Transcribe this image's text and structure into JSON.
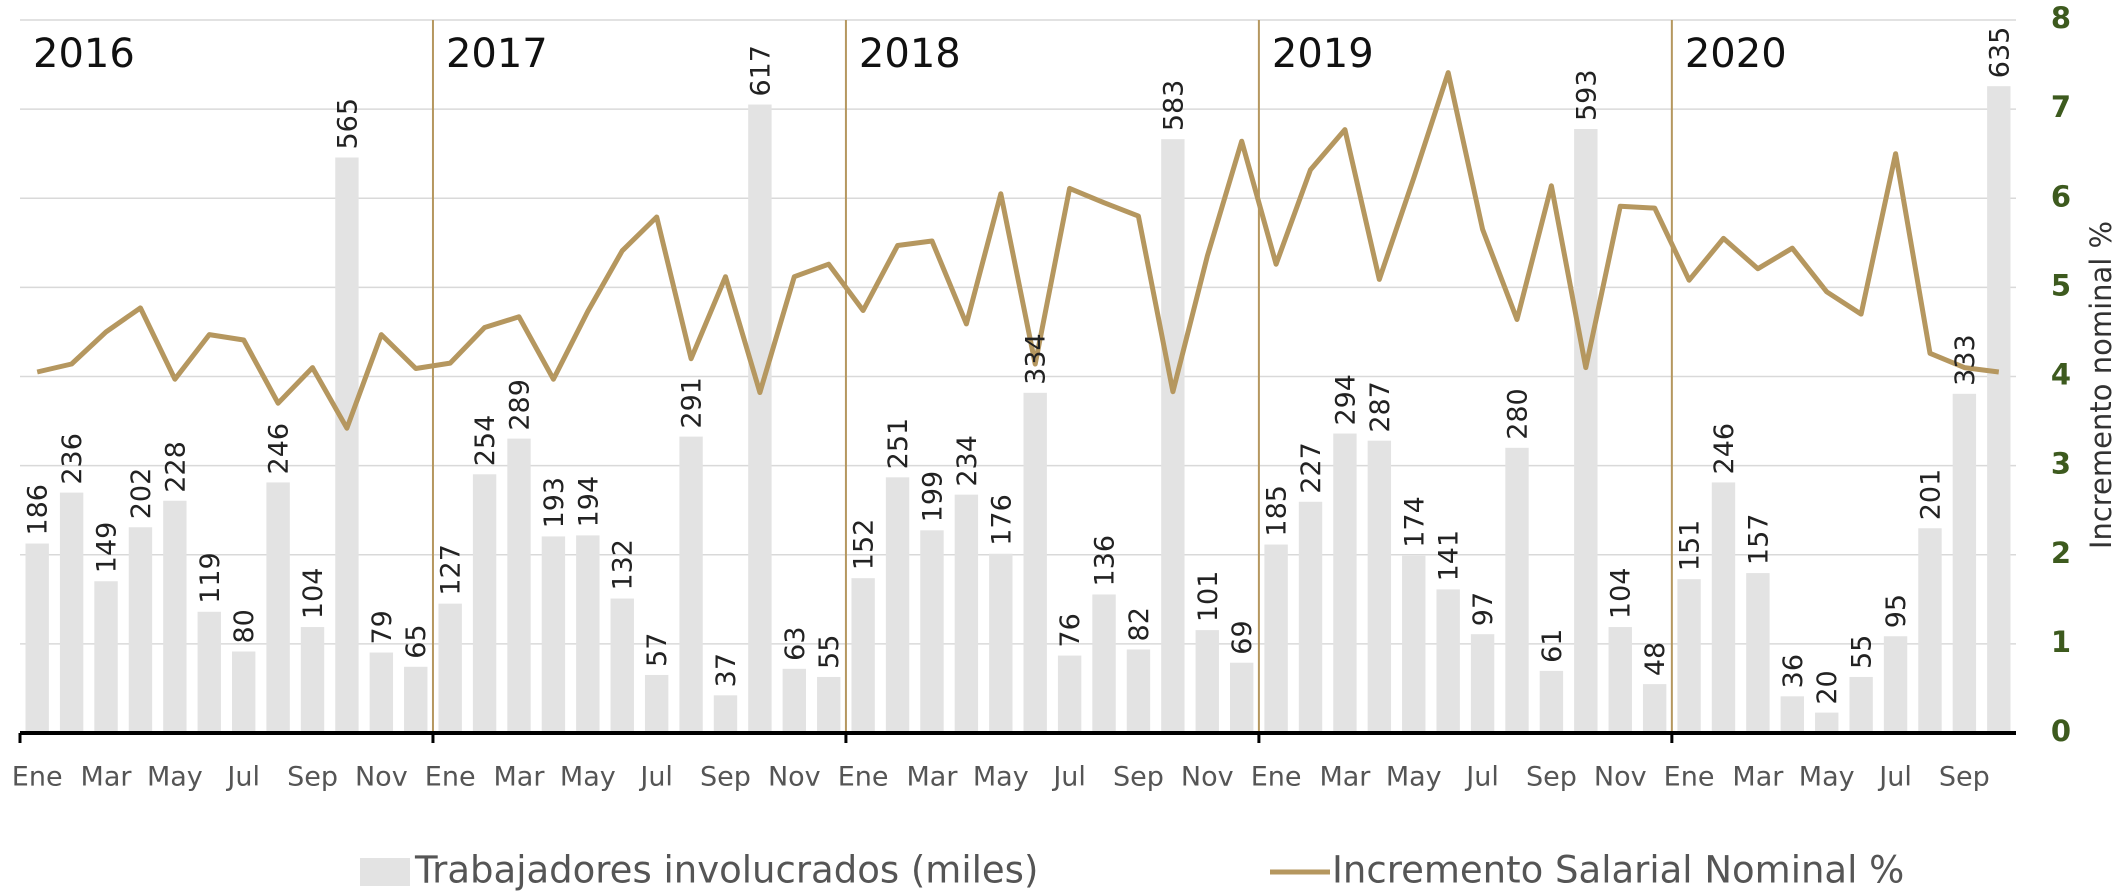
{
  "chart_data": {
    "type": "bar",
    "years": [
      "2016",
      "2017",
      "2018",
      "2019",
      "2020"
    ],
    "categories": [
      "Ene",
      null,
      "Mar",
      null,
      "May",
      null,
      "Jul",
      null,
      "Sep",
      null,
      "Nov",
      null,
      "Ene",
      null,
      "Mar",
      null,
      "May",
      null,
      "Jul",
      null,
      "Sep",
      null,
      "Nov",
      null,
      "Ene",
      null,
      "Mar",
      null,
      "May",
      null,
      "Jul",
      null,
      "Sep",
      null,
      "Nov",
      null,
      "Ene",
      null,
      "Mar",
      null,
      "May",
      null,
      "Jul",
      null,
      "Sep",
      null,
      "Nov",
      null,
      "Ene",
      null,
      "Mar",
      null,
      "May",
      null,
      "Jul",
      null,
      "Sep",
      null
    ],
    "series": [
      {
        "name": "Trabajadores involucrados (miles)",
        "type": "bar",
        "axis": "y",
        "color": "#e3e3e3",
        "values": [
          186,
          236,
          149,
          202,
          228,
          119,
          80,
          246,
          104,
          565,
          79,
          65,
          127,
          254,
          289,
          193,
          194,
          132,
          57,
          291,
          37,
          617,
          63,
          55,
          152,
          251,
          199,
          234,
          176,
          334,
          76,
          136,
          82,
          583,
          101,
          69,
          185,
          227,
          294,
          287,
          174,
          141,
          97,
          280,
          61,
          593,
          104,
          48,
          151,
          246,
          157,
          36,
          20,
          55,
          95,
          201,
          333,
          635
        ]
      },
      {
        "name": "Incremento Salarial Nominal %",
        "type": "line",
        "axis": "y2",
        "color": "#b5975f",
        "values": [
          4.05,
          4.14,
          4.5,
          4.77,
          3.97,
          4.47,
          4.41,
          3.7,
          4.1,
          3.42,
          4.47,
          4.09,
          4.15,
          4.55,
          4.67,
          3.97,
          4.73,
          5.41,
          5.79,
          4.2,
          5.12,
          3.82,
          5.12,
          5.26,
          4.74,
          5.47,
          5.52,
          4.59,
          6.05,
          4.14,
          6.11,
          5.95,
          5.8,
          3.83,
          5.35,
          6.64,
          5.26,
          6.32,
          6.77,
          5.09,
          6.23,
          7.41,
          5.65,
          4.64,
          6.14,
          4.1,
          5.91,
          5.89,
          5.08,
          5.55,
          5.21,
          5.44,
          4.95,
          4.7,
          6.5,
          4.26,
          4.1,
          4.05
        ]
      }
    ],
    "ylim": [
      0,
      700
    ],
    "y2lim": [
      0,
      8
    ],
    "y2ticks": [
      0,
      1,
      2,
      3,
      4,
      5,
      6,
      7,
      8
    ],
    "y2label": "Incremento nominal %",
    "grid": true,
    "legend": "bottom"
  }
}
